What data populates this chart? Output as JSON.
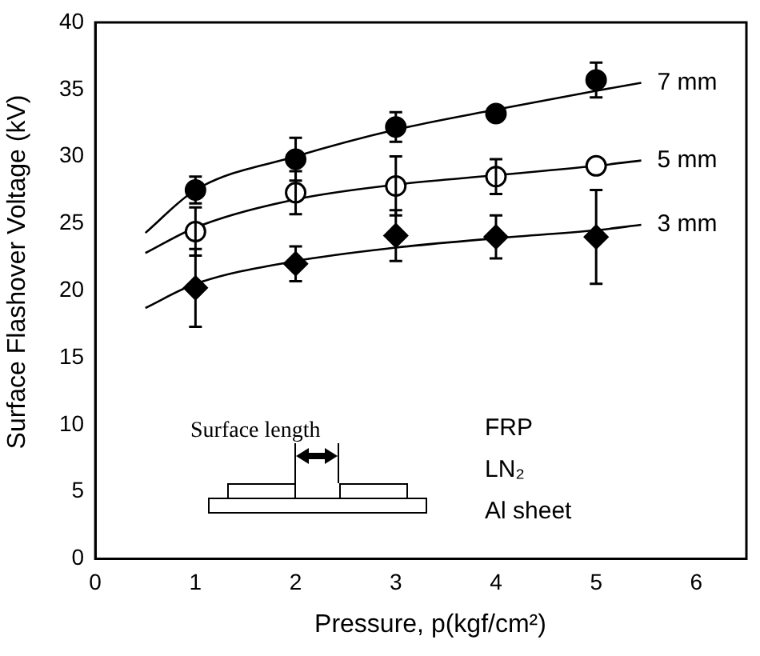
{
  "chart_data": {
    "type": "scatter",
    "xlabel": "Pressure, p(kgf/cm²)",
    "ylabel": "Surface Flashover Voltage (kV)",
    "xlim": [
      0,
      6.5
    ],
    "ylim": [
      0,
      40
    ],
    "xticks": [
      0,
      1,
      2,
      3,
      4,
      5,
      6
    ],
    "yticks": [
      0,
      5,
      10,
      15,
      20,
      25,
      30,
      35,
      40
    ],
    "grid": false,
    "legend": false,
    "annotations": [
      "Surface length",
      "FRP",
      "LN₂",
      "Al sheet"
    ],
    "series": [
      {
        "marker": "circle",
        "color": "#000000",
        "x": [
          1,
          2,
          3,
          4,
          5
        ],
        "values": [
          27.5,
          29.8,
          32.2,
          33.2,
          35.7
        ],
        "errors": [
          1,
          1.6,
          1.1,
          null,
          1.3
        ]
      },
      {
        "marker": "circle",
        "color": "#ffffff",
        "x": [
          1,
          2,
          3,
          4,
          5
        ],
        "values": [
          24.4,
          27.3,
          27.8,
          28.5,
          29.3
        ],
        "errors": [
          1.8,
          1.6,
          2.2,
          1.3,
          null
        ]
      },
      {
        "marker": "diamond",
        "color": "#000000",
        "x": [
          1,
          2,
          3,
          4,
          5
        ],
        "values": [
          20.2,
          22.0,
          24.1,
          24.0,
          24.0
        ],
        "errors": [
          2.9,
          1.3,
          1.9,
          1.6,
          3.5
        ]
      },
      {
        "type": "line",
        "name": "7 mm",
        "color": "#000000",
        "x": [
          0.5,
          1,
          2,
          3,
          4,
          5,
          5.45
        ],
        "values": [
          24.3,
          27.5,
          30.0,
          32.0,
          33.5,
          34.9,
          35.5
        ]
      },
      {
        "type": "line",
        "name": "5 mm",
        "color": "#000000",
        "x": [
          0.5,
          1,
          2,
          3,
          4,
          5,
          5.45
        ],
        "values": [
          22.8,
          24.7,
          26.8,
          27.9,
          28.6,
          29.3,
          29.7
        ]
      },
      {
        "type": "line",
        "name": "3 mm",
        "color": "#000000",
        "x": [
          0.5,
          1,
          2,
          3,
          4,
          5,
          5.45
        ],
        "values": [
          18.7,
          20.5,
          22.2,
          23.2,
          23.9,
          24.5,
          24.9
        ]
      }
    ]
  }
}
